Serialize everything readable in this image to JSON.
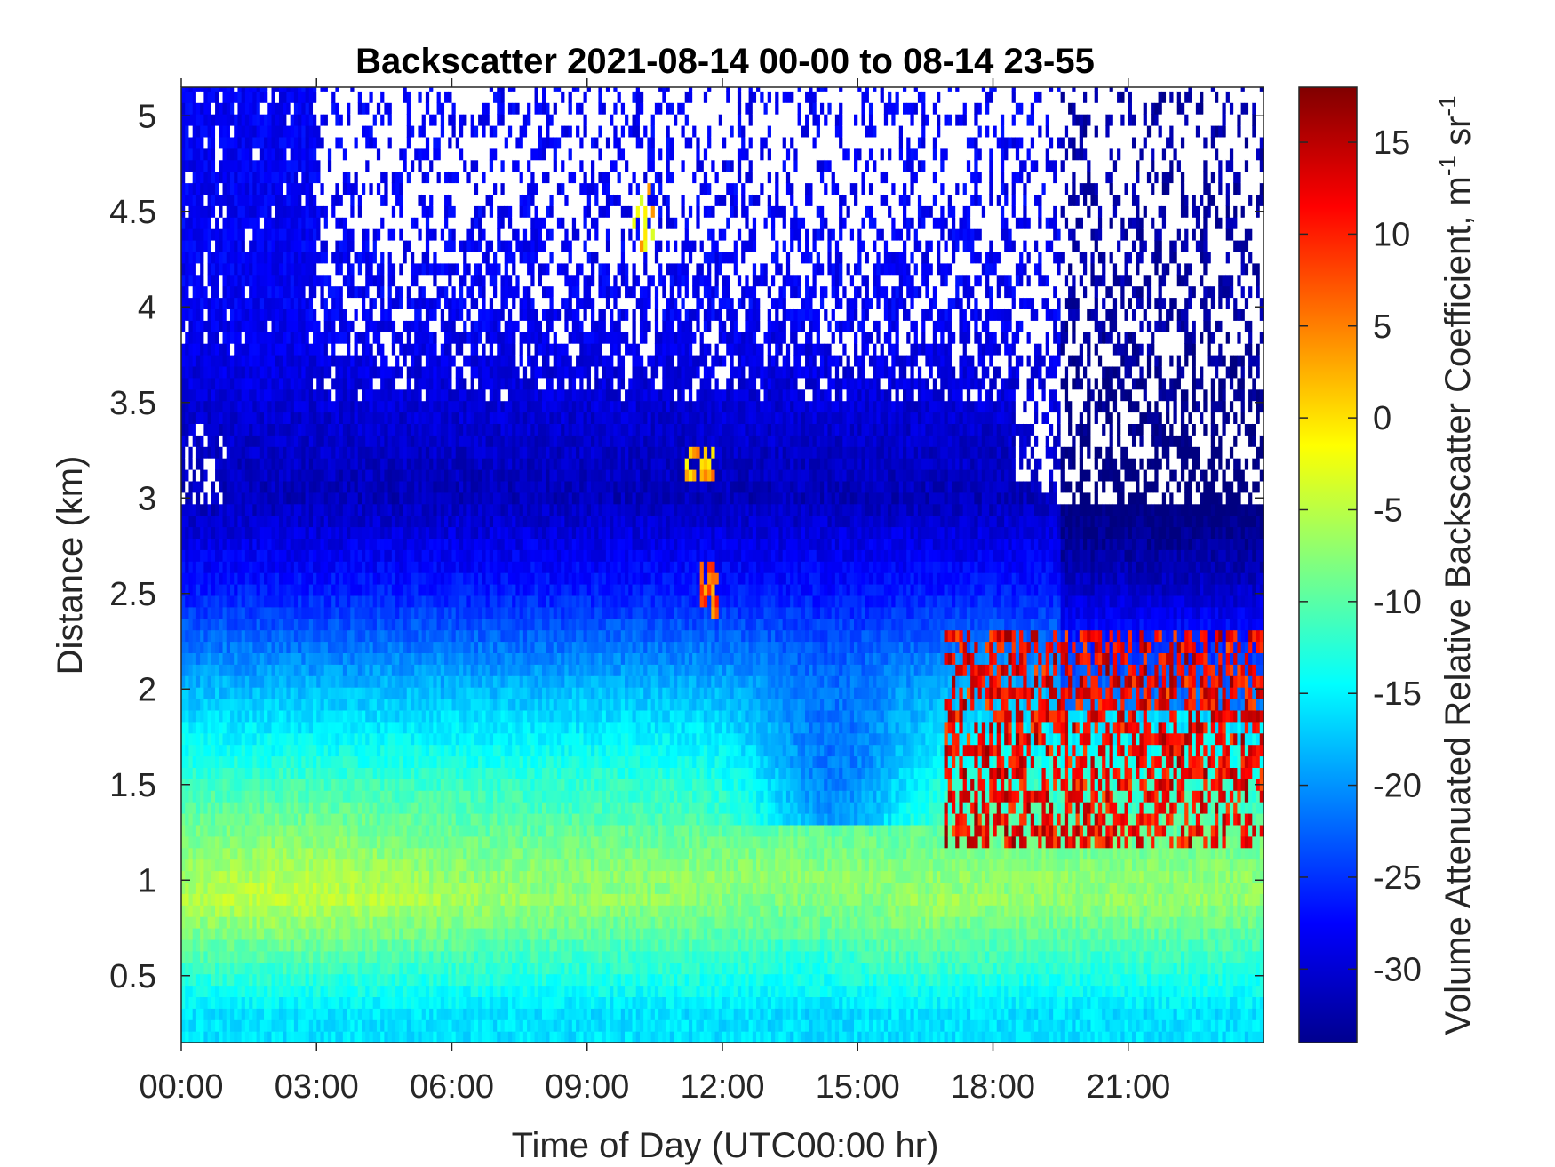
{
  "chart_data": {
    "type": "heatmap",
    "title": "Backscatter 2021-08-14 00-00 to 08-14 23-55",
    "xlabel": "Time of Day (UTC00:00 hr)",
    "ylabel": "Distance (km)",
    "xlim": [
      0,
      24
    ],
    "ylim": [
      0.15,
      5.15
    ],
    "x_ticks": [
      0,
      3,
      6,
      9,
      12,
      15,
      18,
      21
    ],
    "x_tick_labels": [
      "00:00",
      "03:00",
      "06:00",
      "09:00",
      "12:00",
      "15:00",
      "18:00",
      "21:00"
    ],
    "y_ticks": [
      0.5,
      1,
      1.5,
      2,
      2.5,
      3,
      3.5,
      4,
      4.5,
      5
    ],
    "y_tick_labels": [
      "0.5",
      "1",
      "1.5",
      "2",
      "2.5",
      "3",
      "3.5",
      "4",
      "4.5",
      "5"
    ],
    "colorbar": {
      "label": "Volume Attenuated Relative Backscatter Coefficient, m",
      "label_sup1": "-1",
      "label_mid": " sr",
      "label_sup2": "-1",
      "clim": [
        -34,
        18
      ],
      "ticks": [
        15,
        10,
        5,
        0,
        -5,
        -10,
        -15,
        -20,
        -25,
        -30
      ],
      "tick_labels": [
        "15",
        "10",
        "5",
        "0",
        "-5",
        "-10",
        "-15",
        "-20",
        "-25",
        "-30"
      ],
      "colormap": "jet"
    },
    "grid": false,
    "z_profile_rows": [
      {
        "distance_km": 0.3,
        "value": -16
      },
      {
        "distance_km": 0.9,
        "value": -7
      },
      {
        "distance_km": 1.5,
        "value": -12
      },
      {
        "distance_km": 2.0,
        "value": -18
      },
      {
        "distance_km": 2.5,
        "value": -26
      },
      {
        "distance_km": 3.0,
        "value": -31
      },
      {
        "distance_km": 4.0,
        "value": -28
      }
    ],
    "features": [
      {
        "label": "elevated backscatter layer",
        "time_hr": [
          0,
          24
        ],
        "distance_km": [
          0.7,
          1.3
        ],
        "value": -7
      },
      {
        "label": "cloud layer",
        "time_hr": [
          16.9,
          24
        ],
        "distance_km": [
          1.2,
          2.3
        ],
        "value": 12
      },
      {
        "label": "cloud patch",
        "time_hr": [
          11.2,
          11.8
        ],
        "distance_km": [
          3.1,
          3.3
        ],
        "value": 3
      },
      {
        "label": "cloud patch",
        "time_hr": [
          11.5,
          11.9
        ],
        "distance_km": [
          2.35,
          2.65
        ],
        "value": 6
      },
      {
        "label": "cloud patch",
        "time_hr": [
          10,
          10.5
        ],
        "distance_km": [
          4.25,
          4.65
        ],
        "value": 0
      }
    ],
    "missing_data": "white cells above about 3.5 km (no signal)"
  }
}
